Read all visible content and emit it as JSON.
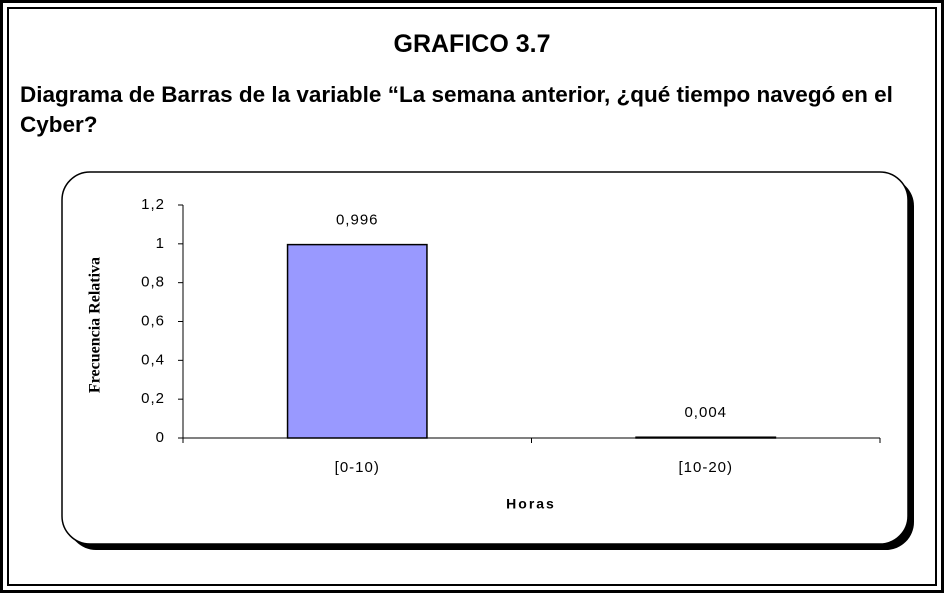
{
  "chart_data": {
    "type": "bar",
    "title": "GRAFICO 3.7",
    "subtitle": "Diagrama de Barras de la variable “La semana anterior, ¿qué tiempo navegó en el Cyber?",
    "x_label": "Horas",
    "y_label": "Frecuencia Relativa",
    "categories": [
      "[0-10)",
      "[10-20)"
    ],
    "values": [
      0.996,
      0.004
    ],
    "value_labels": [
      "0,996",
      "0,004"
    ],
    "color": "#9999ff",
    "ylim": [
      0,
      1.2
    ],
    "yticks": [
      0,
      {
        "value": 0.2,
        "label": "0,2"
      },
      {
        "value": 0.4,
        "label": "0,4"
      },
      {
        "value": 0.6,
        "label": "0,6"
      },
      {
        "value": 0.8,
        "label": "0,8"
      },
      1,
      {
        "value": 1.2,
        "label": "1,2"
      }
    ]
  }
}
